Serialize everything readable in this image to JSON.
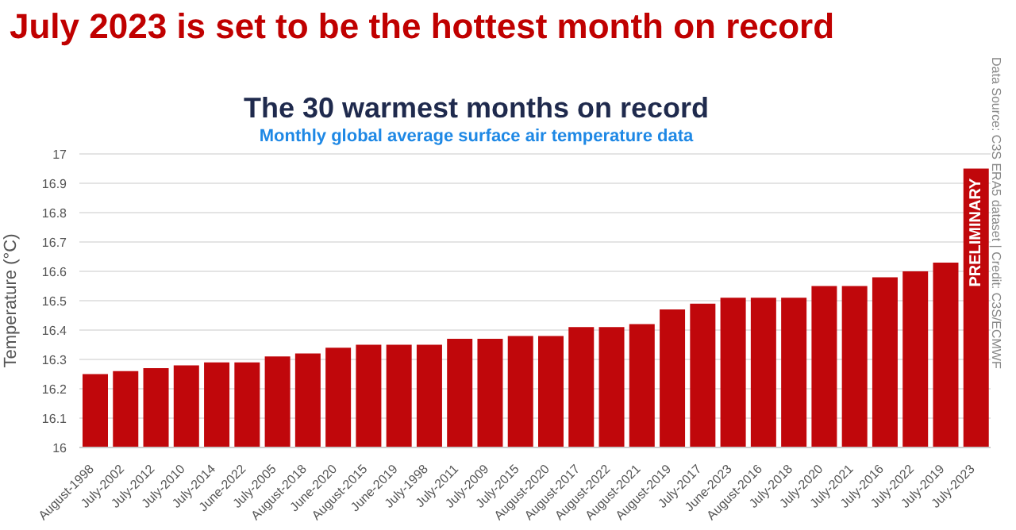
{
  "chart_data": {
    "type": "bar",
    "title": "July 2023 is set to be the hottest month on record",
    "subtitle": "The 30 warmest months on record",
    "annotations": [
      "Monthly global average surface air temperature data",
      "PRELIMINARY",
      "Data Source: C3S ERA5 dataset | Credit: C3S/ECMWF"
    ],
    "ylabel": "Temperature (°C)",
    "categories": [
      "August-1998",
      "July-2002",
      "July-2012",
      "July-2010",
      "July-2014",
      "June-2022",
      "July-2005",
      "August-2018",
      "June-2020",
      "August-2015",
      "June-2019",
      "July-1998",
      "July-2011",
      "July-2009",
      "July-2015",
      "August-2020",
      "August-2017",
      "August-2022",
      "August-2021",
      "August-2019",
      "July-2017",
      "June-2023",
      "August-2016",
      "July-2018",
      "July-2020",
      "July-2021",
      "July-2016",
      "July-2022",
      "July-2019",
      "July-2023"
    ],
    "values": [
      16.25,
      16.26,
      16.27,
      16.28,
      16.29,
      16.29,
      16.31,
      16.32,
      16.34,
      16.35,
      16.35,
      16.35,
      16.37,
      16.37,
      16.38,
      16.38,
      16.41,
      16.41,
      16.42,
      16.47,
      16.49,
      16.51,
      16.51,
      16.51,
      16.55,
      16.55,
      16.58,
      16.6,
      16.63,
      16.95
    ],
    "color": "#c0070b",
    "ylim": [
      16,
      17
    ],
    "yticks": [
      16,
      16.1,
      16.2,
      16.3,
      16.4,
      16.5,
      16.6,
      16.7,
      16.8,
      16.9,
      17
    ],
    "grid": "y",
    "legend": false
  }
}
